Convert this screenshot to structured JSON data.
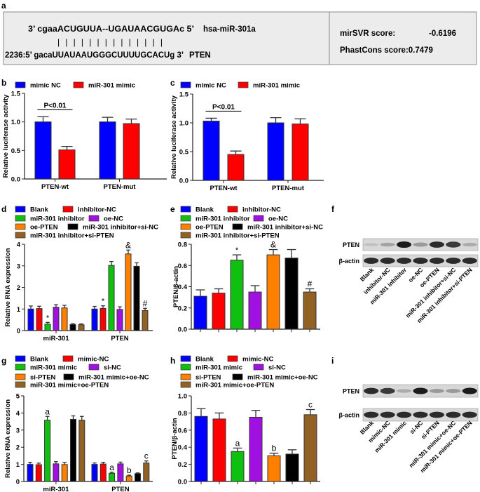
{
  "panel_labels": {
    "a": "a",
    "b": "b",
    "c": "c",
    "d": "d",
    "e": "e",
    "f": "f",
    "g": "g",
    "h": "h",
    "i": "i"
  },
  "panel_a": {
    "mirna_seq": "3’ cgaaACUGUUA--UGAUAACGUGAc  5’",
    "mirna_name": "hsa-miR-301a",
    "pairing": "|    |    | | |          | |    | | | | | | |",
    "target_seq": "2236:5’ gacaUUAUAAUGGGCUUUUGCACUg  3’",
    "target_name": "PTEN",
    "mirsvr_label": "mirSVR score:",
    "mirsvr_value": "-0.6196",
    "phastcons_label": "PhastCons score:0.7479"
  },
  "colors": {
    "blue": "#0000ff",
    "red": "#ff0000",
    "green": "#10c010",
    "purple": "#a010e0",
    "orange": "#ff8000",
    "black": "#000000",
    "brown": "#926224"
  },
  "chart_data": [
    {
      "id": "b",
      "type": "bar",
      "ylabel": "Relative luciferase activity",
      "ylim": [
        0,
        1.5
      ],
      "yticks": [
        "0.0",
        "0.5",
        "1.0",
        "1.5"
      ],
      "ytick_values": [
        0,
        0.5,
        1.0,
        1.5
      ],
      "categories": [
        "PTEN-wt",
        "PTEN-mut"
      ],
      "series": [
        {
          "name": "mimic NC",
          "color": "blue",
          "values": [
            1.0,
            1.0
          ],
          "errors": [
            0.09,
            0.08
          ]
        },
        {
          "name": "miR-301 mimic",
          "color": "red",
          "values": [
            0.51,
            0.97
          ],
          "errors": [
            0.06,
            0.08
          ]
        }
      ],
      "significance": [
        {
          "category": 0,
          "text": "P<0.01"
        }
      ]
    },
    {
      "id": "c",
      "type": "bar",
      "ylabel": "Relative luciferase activity",
      "ylim": [
        0,
        1.5
      ],
      "yticks": [
        "0.0",
        "0.5",
        "1.0",
        "1.5"
      ],
      "ytick_values": [
        0,
        0.5,
        1.0,
        1.5
      ],
      "categories": [
        "PTEN-wt",
        "PTEN-mut"
      ],
      "series": [
        {
          "name": "mimic NC",
          "color": "blue",
          "values": [
            1.03,
            1.0
          ],
          "errors": [
            0.05,
            0.09
          ]
        },
        {
          "name": "miR-301 mimic",
          "color": "red",
          "values": [
            0.45,
            0.98
          ],
          "errors": [
            0.06,
            0.09
          ]
        }
      ],
      "significance": [
        {
          "category": 0,
          "text": "P<0.01"
        }
      ]
    },
    {
      "id": "d",
      "type": "bar",
      "ylabel": "Relative RNA expression",
      "ylim": [
        0,
        4
      ],
      "yticks": [
        "0",
        "1",
        "2",
        "3",
        "4"
      ],
      "ytick_values": [
        0,
        1,
        2,
        3,
        4
      ],
      "categories": [
        "miR-301",
        "PTEN"
      ],
      "series": [
        {
          "name": "Blank",
          "color": "blue",
          "values": [
            1.0,
            1.0
          ],
          "errors": [
            0.14,
            0.12
          ]
        },
        {
          "name": "inhibitor-NC",
          "color": "red",
          "values": [
            1.02,
            1.03
          ],
          "errors": [
            0.11,
            0.12
          ]
        },
        {
          "name": "miR-301 inhibitor",
          "color": "green",
          "values": [
            0.3,
            3.02
          ],
          "errors": [
            0.08,
            0.18
          ]
        },
        {
          "name": "oe-NC",
          "color": "purple",
          "values": [
            1.08,
            0.98
          ],
          "errors": [
            0.12,
            0.12
          ]
        },
        {
          "name": "oe-PTEN",
          "color": "orange",
          "values": [
            1.05,
            3.55
          ],
          "errors": [
            0.12,
            0.18
          ]
        },
        {
          "name": "miR-301 inhibitor+si-NC",
          "color": "black",
          "values": [
            0.28,
            2.98
          ],
          "errors": [
            0.04,
            0.16
          ]
        },
        {
          "name": "miR-301 inhibitor+si-PTEN",
          "color": "brown",
          "values": [
            0.27,
            0.93
          ],
          "errors": [
            0.04,
            0.1
          ]
        }
      ],
      "annotations": [
        {
          "category": 0,
          "series": 2,
          "text": "*"
        },
        {
          "category": 1,
          "series": 1,
          "text": "*"
        },
        {
          "category": 1,
          "series": 4,
          "text": "&"
        },
        {
          "category": 1,
          "series": 6,
          "text": "#"
        }
      ]
    },
    {
      "id": "e",
      "type": "bar",
      "ylabel": "PTEN/β-actin",
      "ylim": [
        0,
        0.8
      ],
      "yticks": [
        "0.0",
        "0.2",
        "0.4",
        "0.6",
        "0.8"
      ],
      "ytick_values": [
        0,
        0.2,
        0.4,
        0.6,
        0.8
      ],
      "categories": [
        ""
      ],
      "series": [
        {
          "name": "Blank",
          "color": "blue",
          "values": [
            0.31
          ],
          "errors": [
            0.06
          ]
        },
        {
          "name": "inhibitor-NC",
          "color": "red",
          "values": [
            0.34
          ],
          "errors": [
            0.04
          ]
        },
        {
          "name": "miR-301 inhibitor",
          "color": "green",
          "values": [
            0.65
          ],
          "errors": [
            0.05
          ]
        },
        {
          "name": "oe-NC",
          "color": "purple",
          "values": [
            0.35
          ],
          "errors": [
            0.06
          ]
        },
        {
          "name": "oe-PTEN",
          "color": "orange",
          "values": [
            0.7
          ],
          "errors": [
            0.05
          ]
        },
        {
          "name": "miR-301 inhibitor+si-NC",
          "color": "black",
          "values": [
            0.67
          ],
          "errors": [
            0.08
          ]
        },
        {
          "name": "miR-301 inhibitor+si-PTEN",
          "color": "brown",
          "values": [
            0.35
          ],
          "errors": [
            0.03
          ]
        }
      ],
      "annotations": [
        {
          "category": 0,
          "series": 2,
          "text": "*"
        },
        {
          "category": 0,
          "series": 4,
          "text": "&"
        },
        {
          "category": 0,
          "series": 6,
          "text": "#"
        }
      ]
    },
    {
      "id": "g",
      "type": "bar",
      "ylabel": "Relative RNA expression",
      "ylim": [
        0,
        5
      ],
      "yticks": [
        "0",
        "1",
        "2",
        "3",
        "4",
        "5"
      ],
      "ytick_values": [
        0,
        1,
        2,
        3,
        4,
        5
      ],
      "categories": [
        "miR-301",
        "PTEN"
      ],
      "series": [
        {
          "name": "Blank",
          "color": "blue",
          "values": [
            1.0,
            1.0
          ],
          "errors": [
            0.12,
            0.08
          ]
        },
        {
          "name": "mimic-NC",
          "color": "red",
          "values": [
            0.98,
            1.02
          ],
          "errors": [
            0.09,
            0.1
          ]
        },
        {
          "name": "miR-301 mimic",
          "color": "green",
          "values": [
            3.58,
            0.48
          ],
          "errors": [
            0.22,
            0.06
          ]
        },
        {
          "name": "si-NC",
          "color": "purple",
          "values": [
            1.03,
            1.03
          ],
          "errors": [
            0.13,
            0.1
          ]
        },
        {
          "name": "si-PTEN",
          "color": "orange",
          "values": [
            0.99,
            0.32
          ],
          "errors": [
            0.12,
            0.05
          ]
        },
        {
          "name": "miR-301 mimic+oe-NC",
          "color": "black",
          "values": [
            3.63,
            0.46
          ],
          "errors": [
            0.2,
            0.04
          ]
        },
        {
          "name": "miR-301 mimic+oe-PTEN",
          "color": "brown",
          "values": [
            3.58,
            1.08
          ],
          "errors": [
            0.22,
            0.12
          ]
        }
      ],
      "annotations": [
        {
          "category": 0,
          "series": 2,
          "text": "a"
        },
        {
          "category": 1,
          "series": 2,
          "text": "a"
        },
        {
          "category": 1,
          "series": 4,
          "text": "b"
        },
        {
          "category": 1,
          "series": 6,
          "text": "c"
        }
      ]
    },
    {
      "id": "h",
      "type": "bar",
      "ylabel": "PTEN/β-actin",
      "ylim": [
        0,
        1.0
      ],
      "yticks": [
        "0.0",
        "0.2",
        "0.4",
        "0.6",
        "0.8",
        "1.0"
      ],
      "ytick_values": [
        0,
        0.2,
        0.4,
        0.6,
        0.8,
        1.0
      ],
      "categories": [
        ""
      ],
      "series": [
        {
          "name": "Blank",
          "color": "blue",
          "values": [
            0.76
          ],
          "errors": [
            0.09
          ]
        },
        {
          "name": "mimic-NC",
          "color": "red",
          "values": [
            0.73
          ],
          "errors": [
            0.07
          ]
        },
        {
          "name": "miR-301 mimic",
          "color": "green",
          "values": [
            0.35
          ],
          "errors": [
            0.04
          ]
        },
        {
          "name": "si-NC",
          "color": "purple",
          "values": [
            0.75
          ],
          "errors": [
            0.08
          ]
        },
        {
          "name": "si-PTEN",
          "color": "orange",
          "values": [
            0.3
          ],
          "errors": [
            0.03
          ]
        },
        {
          "name": "miR-301 mimic+oe-NC",
          "color": "black",
          "values": [
            0.32
          ],
          "errors": [
            0.05
          ]
        },
        {
          "name": "miR-301 mimic+oe-PTEN",
          "color": "brown",
          "values": [
            0.78
          ],
          "errors": [
            0.06
          ]
        }
      ],
      "annotations": [
        {
          "category": 0,
          "series": 2,
          "text": "a"
        },
        {
          "category": 0,
          "series": 4,
          "text": "b"
        },
        {
          "category": 0,
          "series": 6,
          "text": "c"
        }
      ]
    }
  ],
  "blots": [
    {
      "id": "f",
      "rows": [
        {
          "label": "PTEN",
          "intensity": [
            0.2,
            0.4,
            0.95,
            0.45,
            0.9,
            0.85,
            0.35
          ]
        },
        {
          "label": "β-actin",
          "intensity": [
            0.9,
            0.9,
            0.9,
            0.9,
            0.9,
            0.9,
            0.9
          ]
        }
      ],
      "lanes": [
        "Blank",
        "inhibitor-NC",
        "miR-301 inhibitor",
        "oe-NC",
        "oe-PTEN",
        "miR-301 inhibitor+si-NC",
        "miR-301 inhibitor+si-PTEN"
      ]
    },
    {
      "id": "i",
      "rows": [
        {
          "label": "PTEN",
          "intensity": [
            0.9,
            0.85,
            0.35,
            0.95,
            0.45,
            0.45,
            0.95
          ]
        },
        {
          "label": "β-actin",
          "intensity": [
            0.9,
            0.9,
            0.9,
            0.9,
            0.9,
            0.9,
            0.9
          ]
        }
      ],
      "lanes": [
        "Blank",
        "mimic-NC",
        "miR-301 mimic",
        "si-NC",
        "si-PTEN",
        "miR-301 mimic+oe-NC",
        "miR-301 mimic+oe-PTEN"
      ]
    }
  ]
}
